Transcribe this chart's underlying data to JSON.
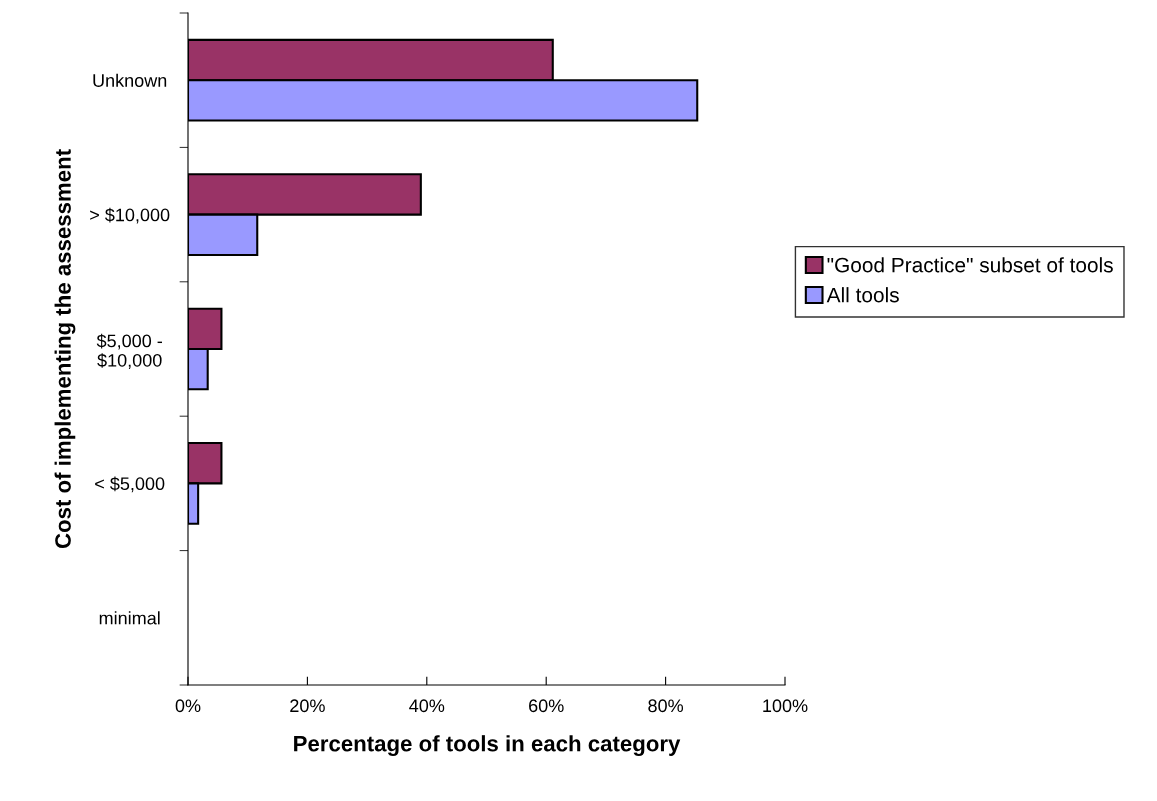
{
  "chart_data": {
    "type": "bar",
    "orientation": "horizontal",
    "xlabel": "Percentage of tools in each category",
    "ylabel": "Cost of implementing the assessment",
    "categories": [
      "Unknown",
      "> $10,000",
      "$5,000 -\n$10,000",
      "< $5,000",
      "minimal"
    ],
    "series": [
      {
        "name": "\"Good Practice\" subset of tools",
        "color": "#993366",
        "values": [
          61.1,
          39.0,
          5.6,
          5.6,
          0
        ]
      },
      {
        "name": "All tools",
        "color": "#9999ff",
        "values": [
          85.3,
          11.6,
          3.3,
          1.7,
          0
        ]
      }
    ],
    "xlim": [
      0,
      100
    ],
    "xticks": [
      {
        "value": 0,
        "label": "0%"
      },
      {
        "value": 20,
        "label": "20%"
      },
      {
        "value": 40,
        "label": "40%"
      },
      {
        "value": 60,
        "label": "60%"
      },
      {
        "value": 80,
        "label": "80%"
      },
      {
        "value": 100,
        "label": "100%"
      }
    ],
    "grid": false,
    "legend": "right"
  }
}
